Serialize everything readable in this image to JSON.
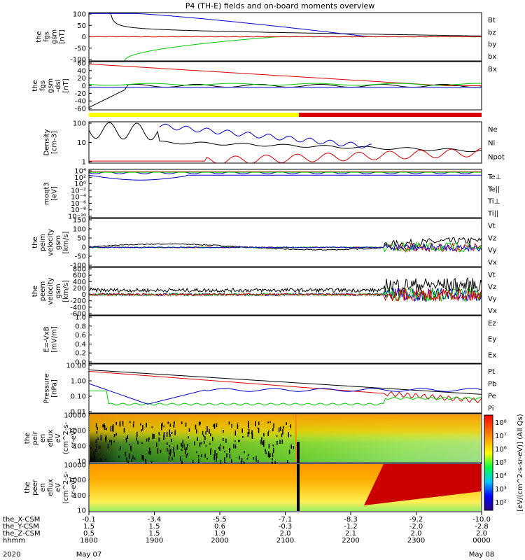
{
  "title": "P4 (TH-E) fields and on-board moments overview",
  "colors": {
    "black": "#000000",
    "red": "#dd0000",
    "green": "#00cc00",
    "blue": "#0000cc",
    "yellow": "#ffff00"
  },
  "chart_data": {
    "type": "line",
    "x_ticks": {
      "rows": [
        {
          "name": "the_X-CSM",
          "values": [
            "-0.1",
            "-3.4",
            "-5.5",
            "-7.1",
            "-8.3",
            "-9.2",
            "-10.0"
          ]
        },
        {
          "name": "the_Y-CSM",
          "values": [
            "1.5",
            "1.5",
            "0.6",
            "-0.3",
            "-1.2",
            "-2.0",
            "-2.8"
          ]
        },
        {
          "name": "the_Z-CSM",
          "values": [
            "0.5",
            "1.5",
            "1.9",
            "2.0",
            "2.1",
            "2.0",
            "2.0"
          ]
        },
        {
          "name": "hhmm",
          "values": [
            "1800",
            "1900",
            "2000",
            "2100",
            "2200",
            "2300",
            "0000"
          ]
        }
      ],
      "date_row": {
        "name": "2020",
        "values": [
          "May 07",
          "",
          "",
          "",
          "",
          "",
          "May 08"
        ]
      }
    },
    "panels": [
      {
        "id": "fgs-gsm",
        "ylabel": [
          "the",
          "fgs",
          "gsm",
          "[nT]"
        ],
        "yticks": [
          "100",
          "50",
          "0",
          "-50",
          "-100"
        ],
        "ylim": [
          -100,
          100
        ],
        "legend": [
          {
            "text": "Bt",
            "color": "#000000"
          },
          {
            "text": "bz",
            "color": "#dd0000"
          },
          {
            "text": "by",
            "color": "#00cc00"
          },
          {
            "text": "bx",
            "color": "#0000cc"
          }
        ]
      },
      {
        "id": "fgs-gsm-dsl",
        "ylabel": [
          "the",
          "fgs",
          "gsm",
          "-dsl",
          "[nT]"
        ],
        "yticks": [
          "60",
          "40",
          "20",
          "0",
          "-20",
          "-40",
          "-60"
        ],
        "ylim": [
          -70,
          60
        ],
        "legend": [
          {
            "text": "Bx",
            "color": "#000000"
          }
        ]
      },
      {
        "id": "density",
        "ylabel": [
          "Density",
          "[cm-3]"
        ],
        "yticks": [
          "100",
          "10",
          "1"
        ],
        "log": true,
        "legend": [
          {
            "text": "Ne",
            "color": "#dd0000"
          },
          {
            "text": "Ni",
            "color": "#000000"
          },
          {
            "text": "Npot",
            "color": "#0000cc"
          }
        ]
      },
      {
        "id": "temperature",
        "ylabel": [
          "moqt3",
          "[eV]"
        ],
        "yticks": [
          "10⁴",
          "10²",
          "10⁰",
          "10⁻²",
          "10⁻⁴",
          "10⁻⁶",
          "10⁻⁸",
          "10⁻¹⁰"
        ],
        "log": true,
        "legend": [
          {
            "text": "Te⊥",
            "color": "#dd0000"
          },
          {
            "text": "Te||",
            "color": "#000000"
          },
          {
            "text": "Ti⊥",
            "color": "#00cc00"
          },
          {
            "text": "Ti||",
            "color": "#00cc00"
          }
        ]
      },
      {
        "id": "peim-velocity",
        "ylabel": [
          "the",
          "peim",
          "velocity",
          "gsm",
          "[km/s]"
        ],
        "yticks": [
          "150",
          "100",
          "50",
          "0",
          "-50",
          "-100"
        ],
        "ylim": [
          -100,
          150
        ],
        "legend": [
          {
            "text": "Vt",
            "color": "#000000"
          },
          {
            "text": "Vz",
            "color": "#dd0000"
          },
          {
            "text": "Vy",
            "color": "#00cc00"
          },
          {
            "text": "Vx",
            "color": "#0000cc"
          }
        ]
      },
      {
        "id": "peem-velocity",
        "ylabel": [
          "the",
          "peem",
          "velocity",
          "gsm",
          "[km/s]"
        ],
        "yticks": [
          "800",
          "600",
          "400",
          "200",
          "0",
          "-200",
          "-400",
          "-600"
        ],
        "ylim": [
          -600,
          800
        ],
        "legend": [
          {
            "text": "Vt",
            "color": "#000000"
          },
          {
            "text": "Vz",
            "color": "#dd0000"
          },
          {
            "text": "Vy",
            "color": "#00cc00"
          },
          {
            "text": "Vx",
            "color": "#0000cc"
          }
        ]
      },
      {
        "id": "efield",
        "ylabel": [
          "E=-VxB",
          "[mV/m]"
        ],
        "yticks": [
          "1.0",
          "0.8",
          "0.6",
          "0.4",
          "0.2",
          "0.0"
        ],
        "ylim": [
          0,
          1
        ],
        "legend": [
          {
            "text": "Ez",
            "color": "#dd0000"
          },
          {
            "text": "Ey",
            "color": "#00cc00"
          },
          {
            "text": "Ex",
            "color": "#0000cc"
          }
        ]
      },
      {
        "id": "pressure",
        "ylabel": [
          "Pressure",
          "[nPa]"
        ],
        "yticks": [
          "10.00",
          "1.00",
          "0.10",
          "0.01"
        ],
        "log": true,
        "legend": [
          {
            "text": "Pt",
            "color": "#000000"
          },
          {
            "text": "Pb",
            "color": "#dd0000"
          },
          {
            "text": "Pe",
            "color": "#00cc00"
          },
          {
            "text": "Pi",
            "color": "#0000cc"
          }
        ]
      },
      {
        "id": "peir-spectrogram",
        "ylabel": [
          "the",
          "peir",
          "en",
          "eflux",
          "eV",
          "(cm^2-s-",
          "sr-eV)"
        ],
        "yticks": [
          "10000",
          "1000",
          "100",
          "10"
        ],
        "type": "heatmap"
      },
      {
        "id": "peer-spectrogram",
        "ylabel": [
          "the",
          "peer",
          "en",
          "eflux",
          "eV",
          "(cm^2-s-",
          "sr-eV)"
        ],
        "yticks": [
          "10000",
          "1000",
          "100",
          "10"
        ],
        "type": "heatmap"
      }
    ],
    "colorbar": {
      "label": "[eV/(cm^2-s-sr-eV)] (All Qs)",
      "ticks": [
        "10⁸",
        "10⁷",
        "10⁶",
        "10⁵",
        "10⁴",
        "10³",
        "10²"
      ]
    }
  }
}
